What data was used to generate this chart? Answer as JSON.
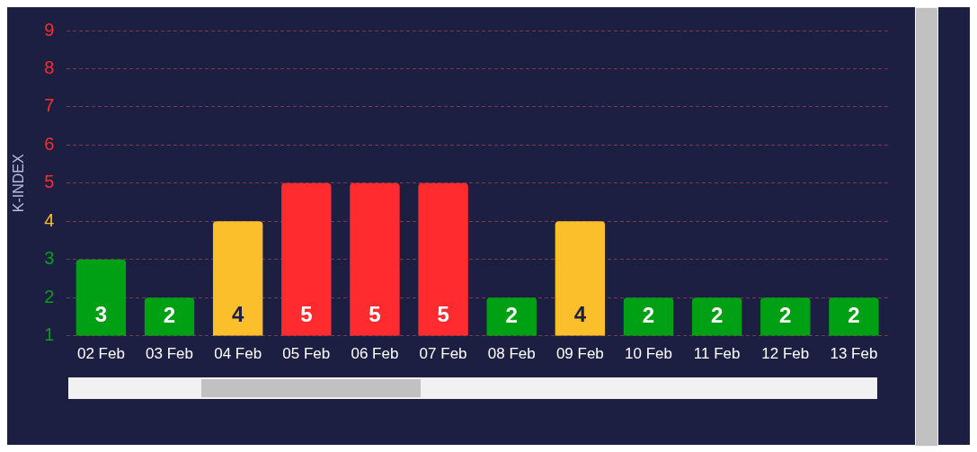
{
  "chart_data": {
    "type": "bar",
    "ylabel": "K-INDEX",
    "categories": [
      "02 Feb",
      "03 Feb",
      "04 Feb",
      "05 Feb",
      "06 Feb",
      "07 Feb",
      "08 Feb",
      "09 Feb",
      "10 Feb",
      "11 Feb",
      "12 Feb",
      "13 Feb"
    ],
    "values": [
      3,
      2,
      4,
      5,
      5,
      5,
      2,
      4,
      2,
      2,
      2,
      2
    ],
    "colors": [
      "#00a014",
      "#00a014",
      "#fcbf2c",
      "#ff2b2e",
      "#ff2b2e",
      "#ff2b2e",
      "#00a014",
      "#fcbf2c",
      "#00a014",
      "#00a014",
      "#00a014",
      "#00a014"
    ],
    "ylim": [
      1,
      9
    ],
    "yticks": [
      1,
      2,
      3,
      4,
      5,
      6,
      7,
      8,
      9
    ],
    "grid": "y",
    "legend": false,
    "data_labels": true
  }
}
